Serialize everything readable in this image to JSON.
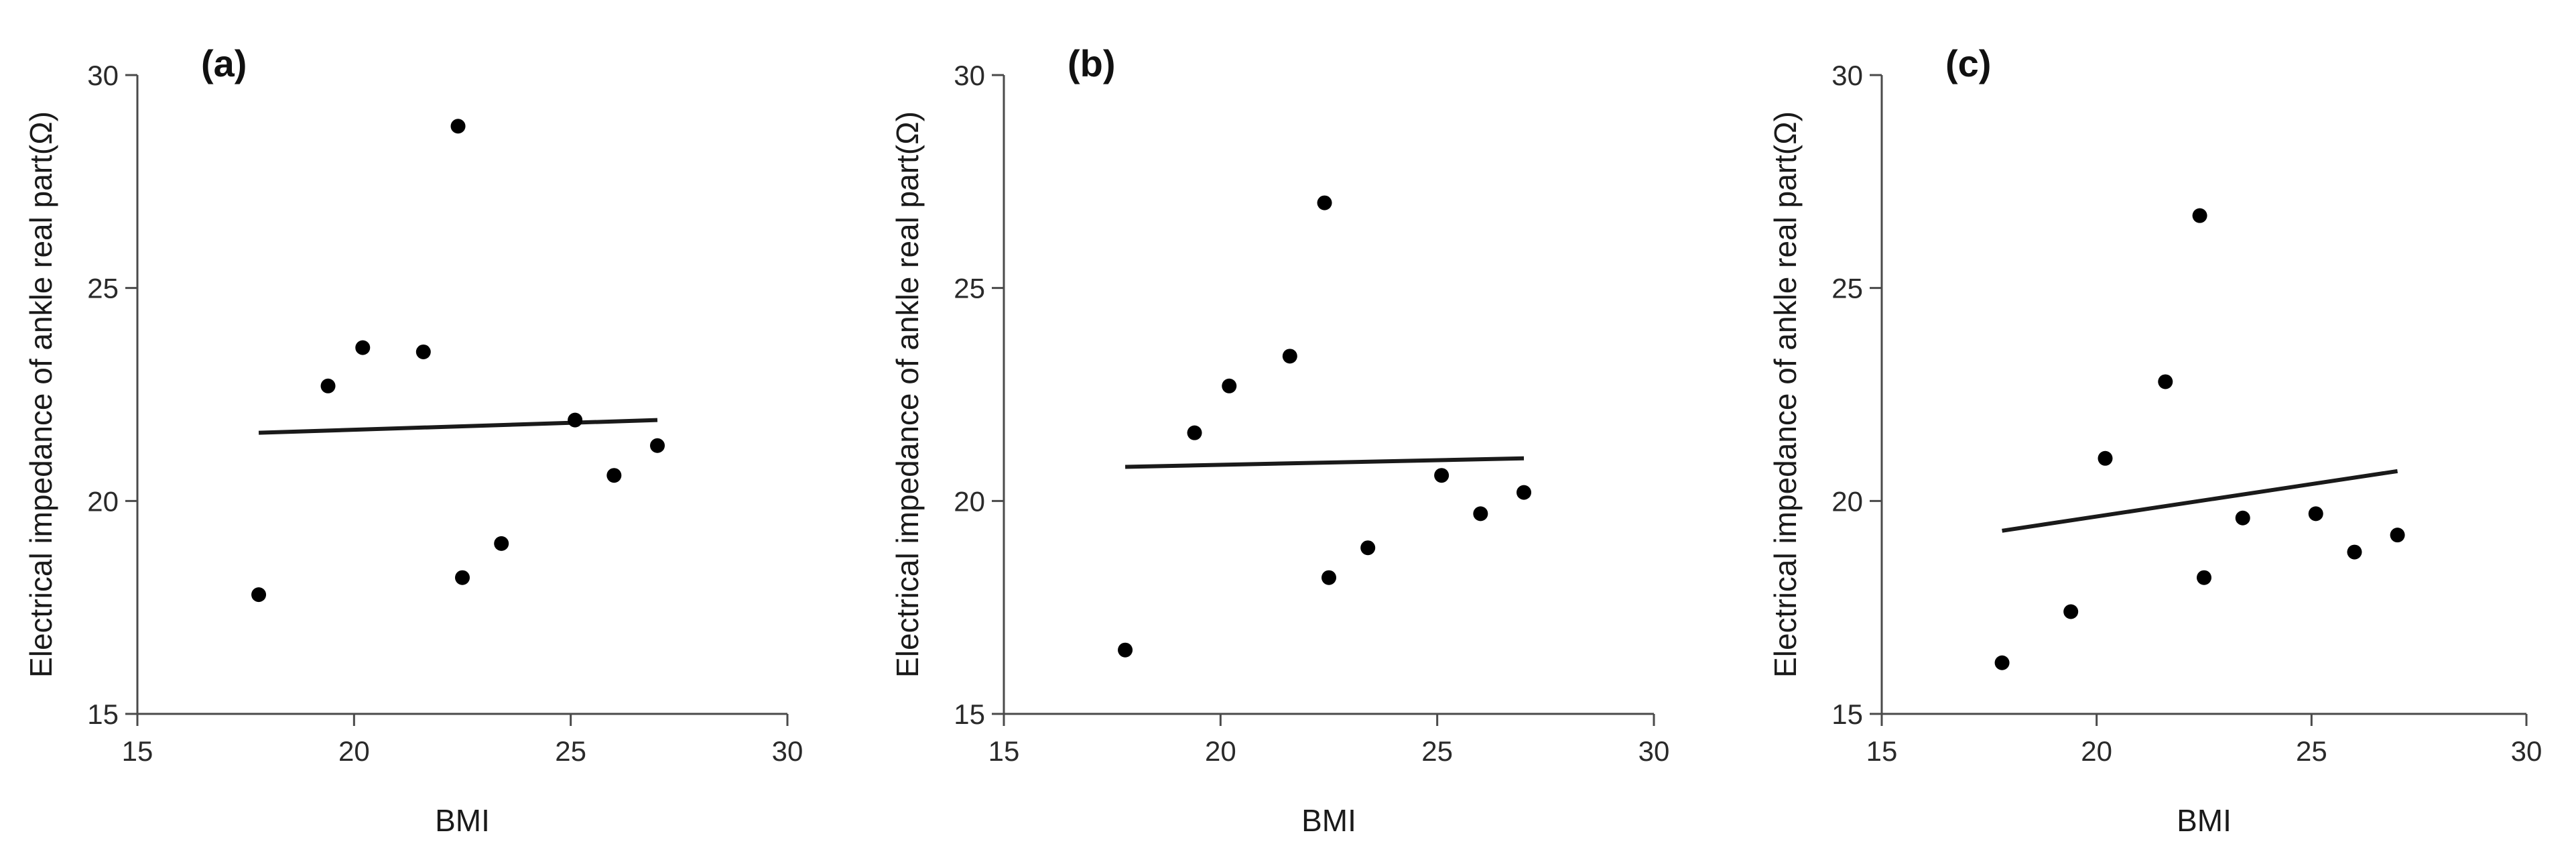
{
  "chart_data": [
    {
      "type": "scatter",
      "panel_label": "(a)",
      "xlabel": "BMI",
      "ylabel": "Electrical impedance of ankle real part(Ω)",
      "xlim": [
        15,
        30
      ],
      "ylim": [
        15,
        30
      ],
      "xticks": [
        15,
        20,
        25,
        30
      ],
      "yticks": [
        15,
        20,
        25,
        30
      ],
      "points": [
        {
          "x": 17.8,
          "y": 17.8
        },
        {
          "x": 19.4,
          "y": 22.7
        },
        {
          "x": 20.2,
          "y": 23.6
        },
        {
          "x": 21.6,
          "y": 23.5
        },
        {
          "x": 22.4,
          "y": 28.8
        },
        {
          "x": 22.5,
          "y": 18.2
        },
        {
          "x": 23.4,
          "y": 19.0
        },
        {
          "x": 25.1,
          "y": 21.9
        },
        {
          "x": 26.0,
          "y": 20.6
        },
        {
          "x": 27.0,
          "y": 21.3
        }
      ],
      "fit_line": {
        "x": [
          17.8,
          27.0
        ],
        "y": [
          21.6,
          21.9
        ]
      }
    },
    {
      "type": "scatter",
      "panel_label": "(b)",
      "xlabel": "BMI",
      "ylabel": "Electrical impedance of ankle real part(Ω)",
      "xlim": [
        15,
        30
      ],
      "ylim": [
        15,
        30
      ],
      "xticks": [
        15,
        20,
        25,
        30
      ],
      "yticks": [
        15,
        20,
        25,
        30
      ],
      "points": [
        {
          "x": 17.8,
          "y": 16.5
        },
        {
          "x": 19.4,
          "y": 21.6
        },
        {
          "x": 20.2,
          "y": 22.7
        },
        {
          "x": 21.6,
          "y": 23.4
        },
        {
          "x": 22.4,
          "y": 27.0
        },
        {
          "x": 22.5,
          "y": 18.2
        },
        {
          "x": 23.4,
          "y": 18.9
        },
        {
          "x": 25.1,
          "y": 20.6
        },
        {
          "x": 26.0,
          "y": 19.7
        },
        {
          "x": 27.0,
          "y": 20.2
        }
      ],
      "fit_line": {
        "x": [
          17.8,
          27.0
        ],
        "y": [
          20.8,
          21.0
        ]
      }
    },
    {
      "type": "scatter",
      "panel_label": "(c)",
      "xlabel": "BMI",
      "ylabel": "Electrical impedance of ankle real part(Ω)",
      "xlim": [
        15,
        30
      ],
      "ylim": [
        15,
        30
      ],
      "xticks": [
        15,
        20,
        25,
        30
      ],
      "yticks": [
        15,
        20,
        25,
        30
      ],
      "points": [
        {
          "x": 17.8,
          "y": 16.2
        },
        {
          "x": 19.4,
          "y": 17.4
        },
        {
          "x": 20.2,
          "y": 21.0
        },
        {
          "x": 21.6,
          "y": 22.8
        },
        {
          "x": 22.4,
          "y": 26.7
        },
        {
          "x": 22.5,
          "y": 18.2
        },
        {
          "x": 23.4,
          "y": 19.6
        },
        {
          "x": 25.1,
          "y": 19.7
        },
        {
          "x": 26.0,
          "y": 18.8
        },
        {
          "x": 27.0,
          "y": 19.2
        }
      ],
      "fit_line": {
        "x": [
          17.8,
          27.0
        ],
        "y": [
          19.3,
          20.7
        ]
      }
    }
  ]
}
